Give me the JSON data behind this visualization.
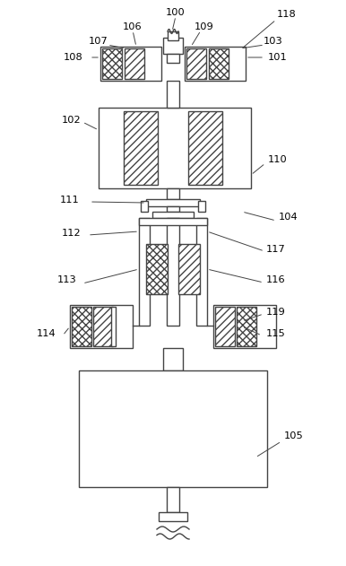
{
  "bg_color": "#ffffff",
  "line_color": "#444444",
  "lw": 1.0,
  "figsize": [
    3.86,
    6.31
  ],
  "dpi": 100
}
